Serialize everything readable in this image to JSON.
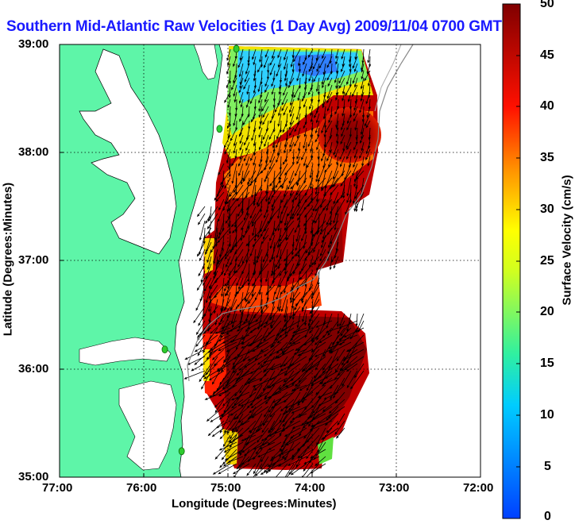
{
  "title": "Southern Mid-Atlantic Raw Velocities (1 Day Avg) 2009/11/04 0700 GMT",
  "xlabel": "Longitude (Degrees:Minutes)",
  "ylabel": "Latitude (Degrees:Minutes)",
  "x_ticks": [
    "77:00",
    "76:00",
    "75:00",
    "74:00",
    "73:00",
    "72:00"
  ],
  "y_ticks": [
    "39:00",
    "38:00",
    "37:00",
    "36:00",
    "35:00"
  ],
  "colorbar": {
    "label": "Surface Velocity (cm/s)",
    "ticks": [
      "50",
      "45",
      "40",
      "35",
      "30",
      "25",
      "20",
      "15",
      "10",
      "5",
      "0"
    ],
    "range": [
      0,
      50
    ]
  },
  "colors": {
    "land": "#5ef5a8",
    "title": "#1a1aff",
    "station": "#2ecc2e"
  },
  "map": {
    "lon_range": [
      -77,
      -72
    ],
    "lat_range": [
      35,
      39
    ],
    "stations": [
      {
        "lon": -74.9,
        "lat": 38.96
      },
      {
        "lon": -75.1,
        "lat": 38.22
      },
      {
        "lon": -75.75,
        "lat": 36.18
      },
      {
        "lon": -75.55,
        "lat": 35.24
      }
    ]
  }
}
